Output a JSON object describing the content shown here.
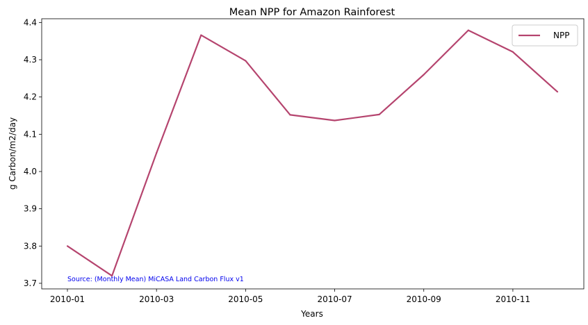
{
  "chart_data": {
    "type": "line",
    "title": "Mean NPP for Amazon Rainforest",
    "xlabel": "Years",
    "ylabel": "g Carbon/m2/day",
    "x": [
      "2010-01",
      "2010-02",
      "2010-03",
      "2010-04",
      "2010-05",
      "2010-06",
      "2010-07",
      "2010-08",
      "2010-09",
      "2010-10",
      "2010-11",
      "2010-12"
    ],
    "x_ticks": [
      "2010-01",
      "2010-03",
      "2010-05",
      "2010-07",
      "2010-09",
      "2010-11"
    ],
    "y_ticks": [
      "3.7",
      "3.8",
      "3.9",
      "4.0",
      "4.1",
      "4.2",
      "4.3",
      "4.4"
    ],
    "ylim": [
      3.685,
      4.41
    ],
    "series": [
      {
        "name": "NPP",
        "color": "#b5446e",
        "values": [
          3.8,
          3.72,
          4.05,
          4.366,
          4.297,
          4.152,
          4.137,
          4.153,
          4.26,
          4.379,
          4.321,
          4.214
        ]
      }
    ],
    "legend": "top-right",
    "grid": false,
    "annotation": "Source: (Monthly Mean) MiCASA Land Carbon Flux v1"
  }
}
